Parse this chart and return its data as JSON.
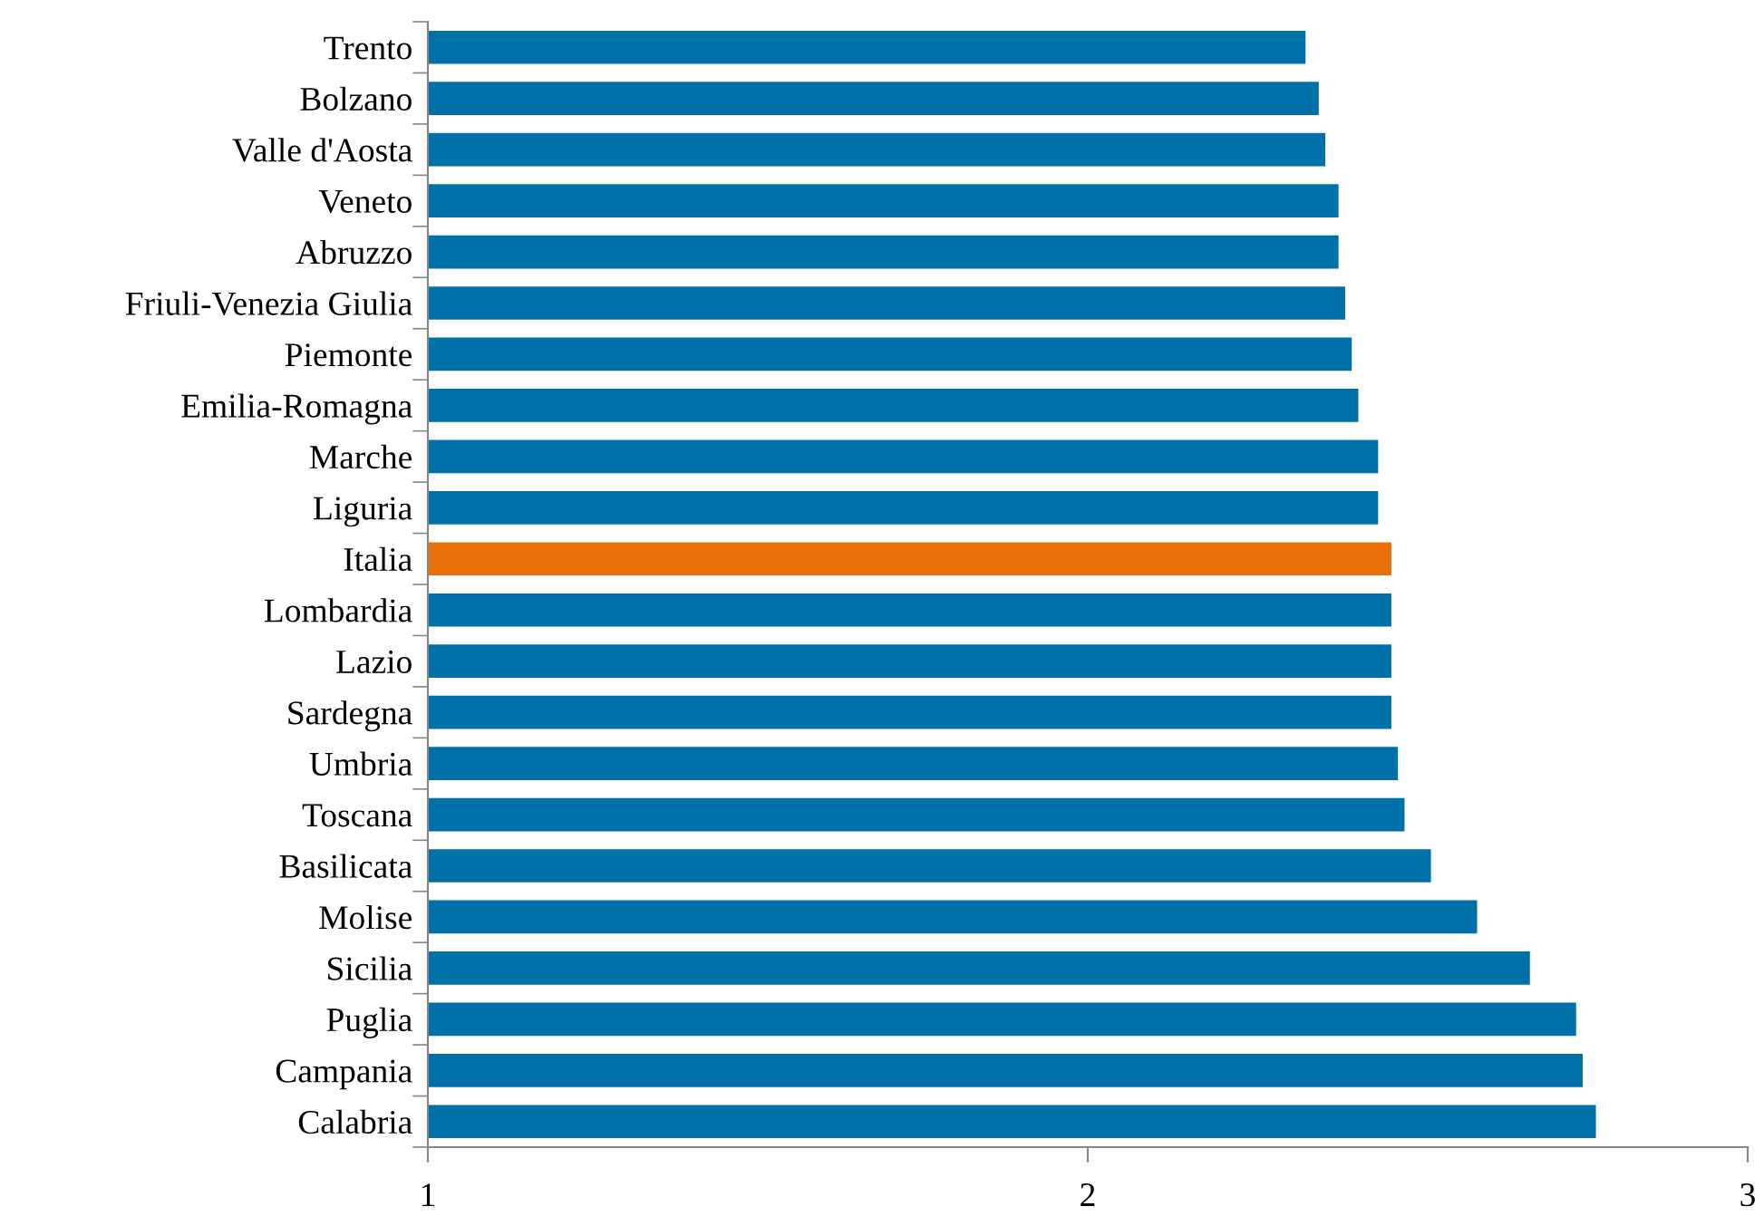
{
  "chart_data": {
    "type": "bar",
    "orientation": "horizontal",
    "categories": [
      "Trento",
      "Bolzano",
      "Valle d'Aosta",
      "Veneto",
      "Abruzzo",
      "Friuli-Venezia Giulia",
      "Piemonte",
      "Emilia-Romagna",
      "Marche",
      "Liguria",
      "Italia",
      "Lombardia",
      "Lazio",
      "Sardegna",
      "Umbria",
      "Toscana",
      "Basilicata",
      "Molise",
      "Sicilia",
      "Puglia",
      "Campania",
      "Calabria"
    ],
    "values": [
      2.33,
      2.35,
      2.36,
      2.38,
      2.38,
      2.39,
      2.4,
      2.41,
      2.44,
      2.44,
      2.46,
      2.46,
      2.46,
      2.46,
      2.47,
      2.48,
      2.52,
      2.59,
      2.67,
      2.74,
      2.75,
      2.77
    ],
    "colors": [
      "#0070a8",
      "#0070a8",
      "#0070a8",
      "#0070a8",
      "#0070a8",
      "#0070a8",
      "#0070a8",
      "#0070a8",
      "#0070a8",
      "#0070a8",
      "#e8700a",
      "#0070a8",
      "#0070a8",
      "#0070a8",
      "#0070a8",
      "#0070a8",
      "#0070a8",
      "#0070a8",
      "#0070a8",
      "#0070a8",
      "#0070a8",
      "#0070a8"
    ],
    "xlim": [
      1,
      3
    ],
    "xticks": [
      1,
      2,
      3
    ],
    "grid": false,
    "legend": false
  }
}
